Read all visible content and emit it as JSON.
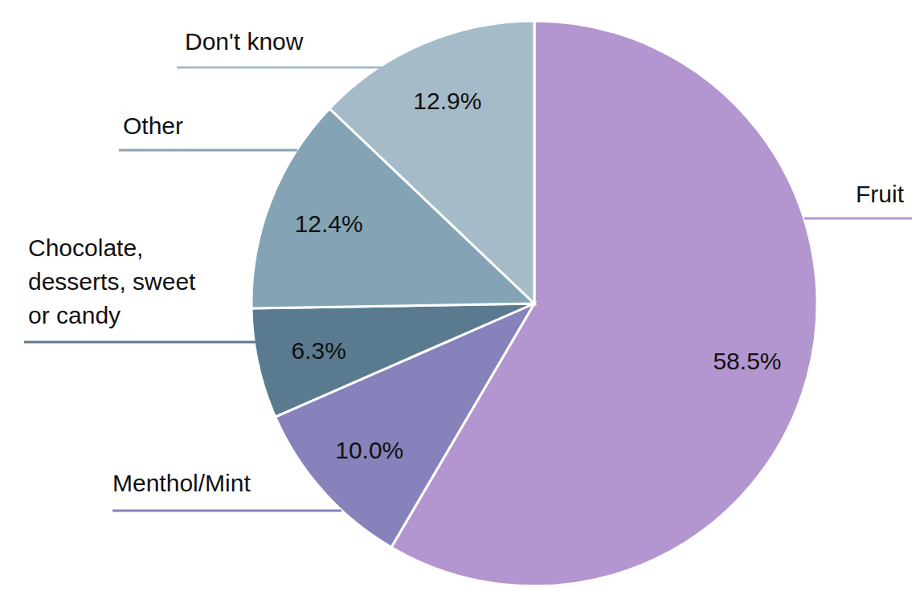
{
  "chart_data": {
    "type": "pie",
    "categories": [
      "Fruit",
      "Menthol/Mint",
      "Chocolate, desserts, sweet or candy",
      "Other",
      "Don't know"
    ],
    "values": [
      58.5,
      10.0,
      6.3,
      12.4,
      12.9
    ],
    "value_labels": [
      "58.5%",
      "10.0%",
      "6.3%",
      "12.4%",
      "12.9%"
    ],
    "colors": [
      "#b396d0",
      "#8682bb",
      "#5a7b8f",
      "#84a4b6",
      "#a6bbc8"
    ],
    "data_labels": true
  }
}
